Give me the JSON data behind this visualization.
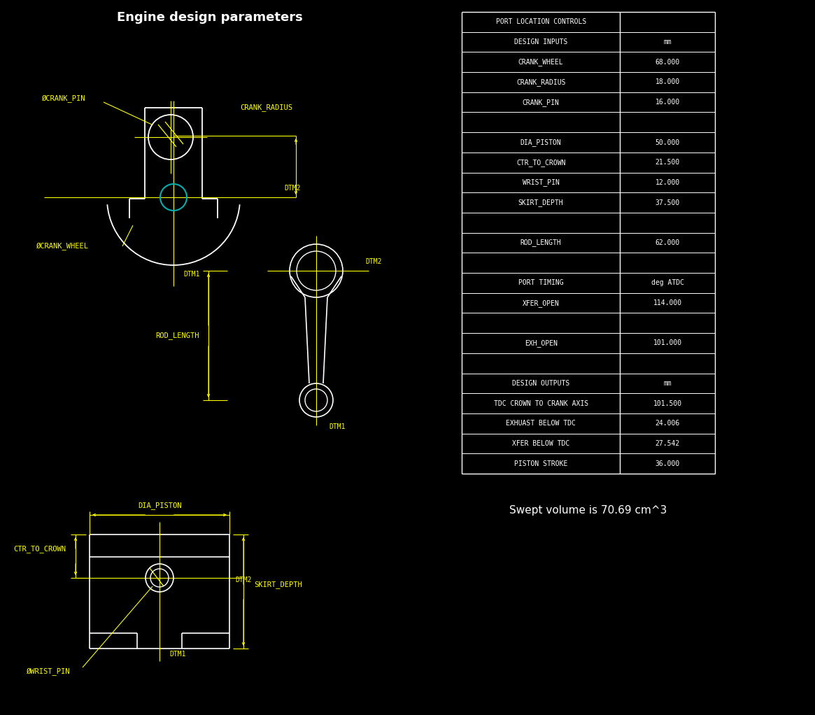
{
  "bg_color": "#000000",
  "white": "#ffffff",
  "yellow": "#ffff00",
  "cyan": "#00b0b0",
  "title": "Engine design parameters",
  "title_color": "#ffffff",
  "table_rows": [
    [
      "PORT LOCATION CONTROLS",
      ""
    ],
    [
      "DESIGN INPUTS",
      "mm"
    ],
    [
      "CRANK_WHEEL",
      "68.000"
    ],
    [
      "CRANK_RADIUS",
      "18.000"
    ],
    [
      "CRANK_PIN",
      "16.000"
    ],
    [
      "",
      ""
    ],
    [
      "DIA_PISTON",
      "50.000"
    ],
    [
      "CTR_TO_CROWN",
      "21.500"
    ],
    [
      "WRIST_PIN",
      "12.000"
    ],
    [
      "SKIRT_DEPTH",
      "37.500"
    ],
    [
      "",
      ""
    ],
    [
      "ROD_LENGTH",
      "62.000"
    ],
    [
      "",
      ""
    ],
    [
      "PORT TIMING",
      "deg ATDC"
    ],
    [
      "XFER_OPEN",
      "114.000"
    ],
    [
      "",
      ""
    ],
    [
      "EXH_OPEN",
      "101.000"
    ],
    [
      "",
      ""
    ],
    [
      "DESIGN OUTPUTS",
      "mm"
    ],
    [
      "TDC CROWN TO CRANK AXIS",
      "101.500"
    ],
    [
      "EXHUAST BELOW TDC",
      "24.006"
    ],
    [
      "XFER BELOW TDC",
      "27.542"
    ],
    [
      "PISTON STROKE",
      "36.000"
    ]
  ],
  "swept_volume_text": "Swept volume is 70.69 cm^3"
}
